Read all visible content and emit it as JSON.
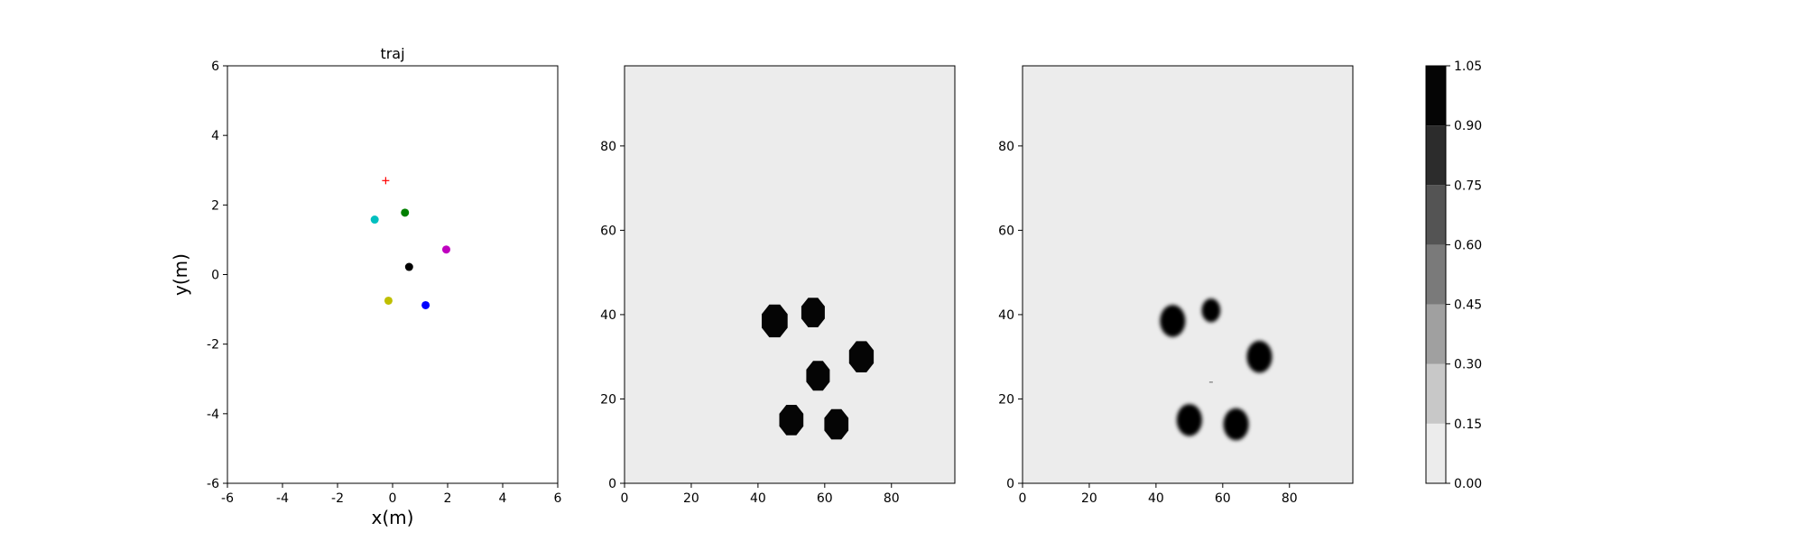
{
  "chart_data": [
    {
      "type": "scatter",
      "title": "traj",
      "xlabel": "x(m)",
      "ylabel": "y(m)",
      "xlim": [
        -6,
        6
      ],
      "ylim": [
        -6,
        6
      ],
      "xticks": [
        -6,
        -4,
        -2,
        0,
        2,
        4,
        6
      ],
      "yticks": [
        -6,
        -4,
        -2,
        0,
        2,
        4,
        6
      ],
      "grid": false,
      "series": [
        {
          "marker": "plus",
          "color": "#ff0000",
          "points": [
            [
              -0.25,
              2.7
            ]
          ]
        },
        {
          "marker": "circle",
          "color": "#008000",
          "points": [
            [
              0.45,
              1.78
            ]
          ]
        },
        {
          "marker": "circle",
          "color": "#00bfbf",
          "points": [
            [
              -0.65,
              1.58
            ]
          ]
        },
        {
          "marker": "circle",
          "color": "#bf00bf",
          "points": [
            [
              1.95,
              0.72
            ]
          ]
        },
        {
          "marker": "circle",
          "color": "#000000",
          "points": [
            [
              0.6,
              0.22
            ]
          ]
        },
        {
          "marker": "circle",
          "color": "#bfbf00",
          "points": [
            [
              -0.15,
              -0.75
            ]
          ]
        },
        {
          "marker": "circle",
          "color": "#0000ff",
          "points": [
            [
              1.2,
              -0.88
            ]
          ]
        }
      ]
    },
    {
      "type": "heatmap",
      "title": "",
      "xlim": [
        0,
        99
      ],
      "ylim": [
        0,
        99
      ],
      "xticks": [
        0,
        20,
        40,
        60,
        80
      ],
      "yticks": [
        0,
        20,
        40,
        60,
        80
      ],
      "background_value": 0.05,
      "blobs": [
        {
          "x": 45,
          "y": 38.5,
          "radius": 4.2,
          "value": 1.0,
          "shape": "octagon"
        },
        {
          "x": 56.5,
          "y": 40.5,
          "radius": 3.8,
          "value": 1.0,
          "shape": "octagon"
        },
        {
          "x": 71,
          "y": 30,
          "radius": 4.0,
          "value": 1.0,
          "shape": "octagon"
        },
        {
          "x": 58,
          "y": 25.5,
          "radius": 3.8,
          "value": 1.0,
          "shape": "octagon"
        },
        {
          "x": 50,
          "y": 15,
          "radius": 3.9,
          "value": 1.0,
          "shape": "octagon"
        },
        {
          "x": 63.5,
          "y": 14,
          "radius": 3.9,
          "value": 1.0,
          "shape": "octagon"
        }
      ]
    },
    {
      "type": "heatmap",
      "title": "",
      "xlim": [
        0,
        99
      ],
      "ylim": [
        0,
        99
      ],
      "xticks": [
        0,
        20,
        40,
        60,
        80
      ],
      "yticks": [
        0,
        20,
        40,
        60,
        80
      ],
      "background_value": 0.05,
      "blobs": [
        {
          "x": 45,
          "y": 38.5,
          "radius": 3.8,
          "value": 1.0,
          "shape": "circle"
        },
        {
          "x": 56.5,
          "y": 41,
          "radius": 2.8,
          "value": 1.0,
          "shape": "circle"
        },
        {
          "x": 71,
          "y": 30,
          "radius": 3.8,
          "value": 1.0,
          "shape": "circle"
        },
        {
          "x": 50,
          "y": 15,
          "radius": 3.8,
          "value": 1.0,
          "shape": "circle"
        },
        {
          "x": 64,
          "y": 14,
          "radius": 3.8,
          "value": 1.0,
          "shape": "circle"
        }
      ],
      "specks": [
        {
          "x": 56.5,
          "y": 24,
          "value": 0.45
        }
      ]
    }
  ],
  "colorbar": {
    "levels": [
      0.0,
      0.15,
      0.3,
      0.45,
      0.6,
      0.75,
      0.9,
      1.05
    ],
    "tick_labels": [
      "0.00",
      "0.15",
      "0.30",
      "0.45",
      "0.60",
      "0.75",
      "0.90",
      "1.05"
    ],
    "colors": [
      "#ececec",
      "#c8c8c8",
      "#a0a0a0",
      "#7a7a7a",
      "#545454",
      "#2c2c2c",
      "#050505"
    ]
  }
}
